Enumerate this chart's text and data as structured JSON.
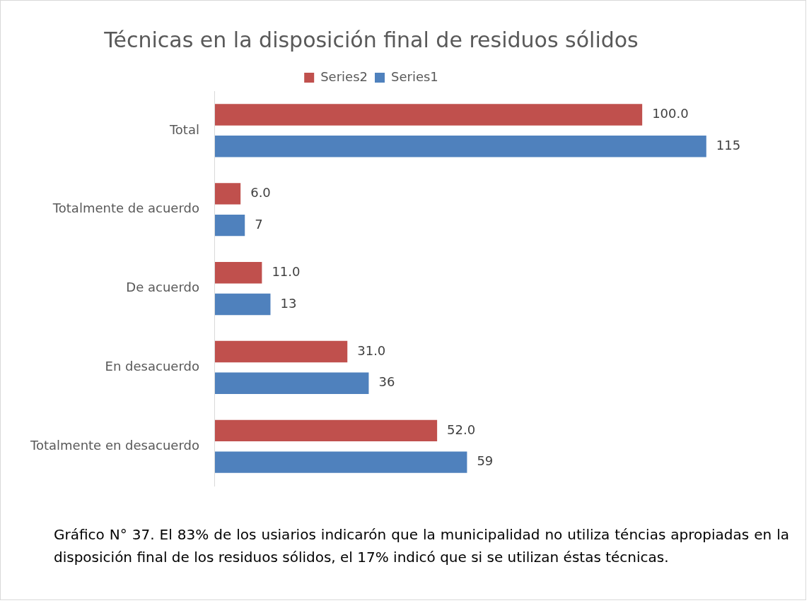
{
  "chart_data": {
    "type": "bar",
    "orientation": "horizontal",
    "title": "Técnicas en la disposición final de residuos sólidos",
    "categories": [
      "Total",
      "Totalmente de acuerdo",
      "De acuerdo",
      "En desacuerdo",
      "Totalmente en desacuerdo"
    ],
    "series": [
      {
        "name": "Series2",
        "color": "#c0504d",
        "values": [
          100,
          6,
          11,
          31,
          52
        ],
        "value_labels": [
          "100.0",
          "6.0",
          "11.0",
          "31.0",
          "52.0"
        ]
      },
      {
        "name": "Series1",
        "color": "#4f81bd",
        "values": [
          115,
          7,
          13,
          36,
          59
        ],
        "value_labels": [
          "115",
          "7",
          "13",
          "36",
          "59"
        ]
      }
    ],
    "legend": "top",
    "annotations": [
      "Gráfico N° 37. El 83% de los usiarios indicarón que la municipalidad no utiliza téncias apropiadas en la disposición final de los residuos sólidos, el 17% indicó que si se utilizan éstas técnicas."
    ]
  }
}
